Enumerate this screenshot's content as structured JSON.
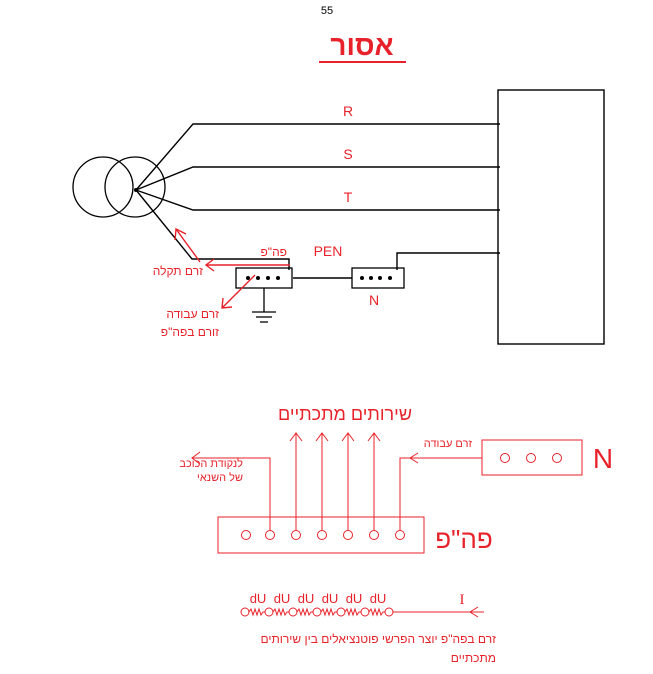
{
  "page_number": "55",
  "title": "אסור",
  "top_diagram": {
    "phase_r": "R",
    "phase_s": "S",
    "phase_t": "T",
    "pen_label": "PEN",
    "neutral_label": "N",
    "pe_label": "פה\"פ",
    "fault_current": "זרם תקלה",
    "working_current": "זרם עבודה",
    "flows_in_pe": "זורם בפה\"פ"
  },
  "bottom_diagram": {
    "metal_services": "שירותים מתכתיים",
    "to_star_point_line1": "לנקודת הכוכב",
    "to_star_point_line2": "של השנאי",
    "working_current": "זרם עבודה",
    "neutral_label": "N",
    "pe_label": "פה\"פ",
    "du_labels": [
      "dU",
      "dU",
      "dU",
      "dU",
      "dU",
      "dU"
    ],
    "current_symbol": "I",
    "caption_line1": "זרם בפה\"פ יוצר הפרשי פוטנציאלים בין שירותים",
    "caption_line2": "מתכתיים"
  },
  "colors": {
    "accent_red": "#e8222a",
    "line_black": "#000000"
  }
}
